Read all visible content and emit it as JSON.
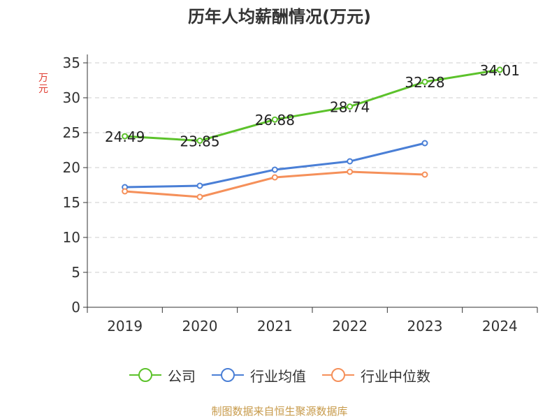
{
  "chart_data": {
    "type": "line",
    "title": "历年人均薪酬情况(万元)",
    "ylabel": "万元",
    "xlabel": "",
    "ylim": [
      0,
      35
    ],
    "yticks": [
      0,
      5,
      10,
      15,
      20,
      25,
      30,
      35
    ],
    "grid": true,
    "legend_position": "bottom",
    "categories": [
      "2019",
      "2020",
      "2021",
      "2022",
      "2023",
      "2024"
    ],
    "series": [
      {
        "name": "公司",
        "color": "#5cc22b",
        "show_labels": true,
        "values": [
          24.49,
          23.85,
          26.88,
          28.74,
          32.28,
          34.01
        ],
        "labels": [
          "24.49",
          "23.85",
          "26.88",
          "28.74",
          "32.28",
          "34.01"
        ]
      },
      {
        "name": "行业均值",
        "color": "#4a7fd6",
        "show_labels": false,
        "values": [
          17.2,
          17.4,
          19.7,
          20.9,
          23.5,
          null
        ]
      },
      {
        "name": "行业中位数",
        "color": "#f5905a",
        "show_labels": false,
        "values": [
          16.6,
          15.8,
          18.6,
          19.4,
          19.0,
          null
        ]
      }
    ],
    "source": "制图数据来自恒生聚源数据库"
  }
}
